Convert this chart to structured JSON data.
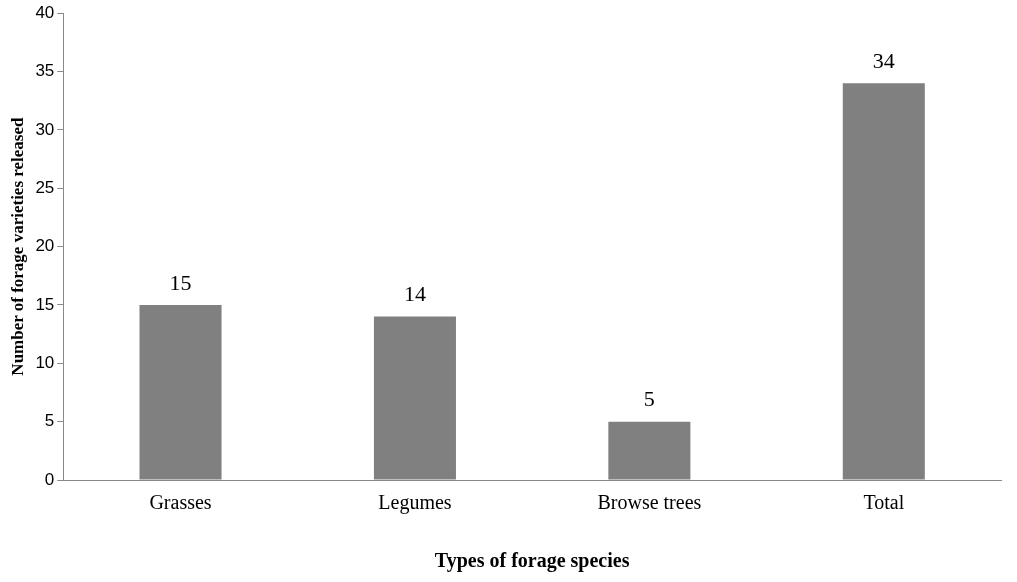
{
  "chart_data": {
    "type": "bar",
    "xlabel": "Types of forage species",
    "ylabel": "Number of forage varieties released",
    "categories": [
      "Grasses",
      "Legumes",
      "Browse trees",
      "Total"
    ],
    "values": [
      15,
      14,
      5,
      34
    ],
    "color": "#808080",
    "ylim": [
      0,
      40
    ],
    "yticks": [
      0,
      5,
      10,
      15,
      20,
      25,
      30,
      35,
      40
    ],
    "grid": false,
    "legend": false,
    "data_labels": true
  }
}
